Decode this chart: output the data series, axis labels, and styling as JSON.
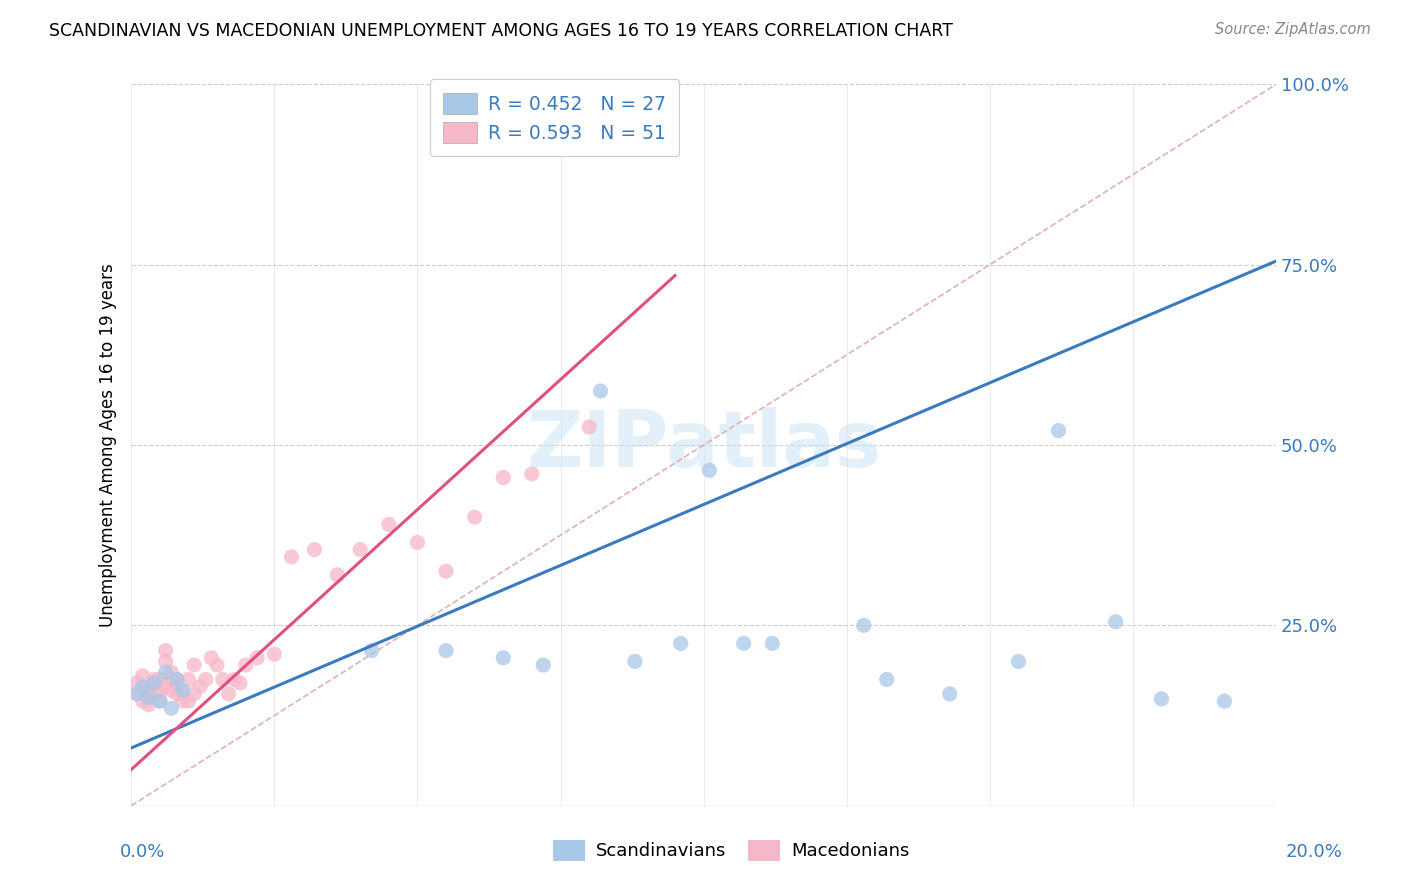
{
  "title": "SCANDINAVIAN VS MACEDONIAN UNEMPLOYMENT AMONG AGES 16 TO 19 YEARS CORRELATION CHART",
  "source": "Source: ZipAtlas.com",
  "ylabel": "Unemployment Among Ages 16 to 19 years",
  "color_scandinavian": "#a8c8e8",
  "color_macedonian": "#f5b8c8",
  "scatter_alpha": 0.75,
  "scatter_size": 120,
  "watermark_color": "#cce4f5",
  "blue_line_color": "#3a7abf",
  "pink_line_color": "#e05080",
  "legend_color1": "#a8c8e8",
  "legend_color2": "#f5b8c8",
  "legend_label1": "R = 0.452   N = 27",
  "legend_label2": "R = 0.593   N = 51",
  "xlim": [
    0.0,
    0.2
  ],
  "ylim": [
    0.0,
    1.0
  ],
  "blue_line_x": [
    0.0,
    0.2
  ],
  "blue_line_y": [
    0.08,
    0.755
  ],
  "pink_line_x": [
    0.0,
    0.095
  ],
  "pink_line_y": [
    0.05,
    0.735
  ],
  "diag_line_x": [
    0.0,
    0.2
  ],
  "diag_line_y": [
    0.0,
    1.0
  ],
  "scan_x": [
    0.001,
    0.002,
    0.003,
    0.004,
    0.005,
    0.006,
    0.007,
    0.008,
    0.009,
    0.042,
    0.055,
    0.065,
    0.072,
    0.082,
    0.088,
    0.096,
    0.101,
    0.107,
    0.112,
    0.128,
    0.132,
    0.143,
    0.155,
    0.162,
    0.172,
    0.18,
    0.191
  ],
  "scan_y": [
    0.155,
    0.165,
    0.15,
    0.17,
    0.145,
    0.185,
    0.135,
    0.175,
    0.16,
    0.215,
    0.215,
    0.205,
    0.195,
    0.575,
    0.2,
    0.225,
    0.465,
    0.225,
    0.225,
    0.25,
    0.175,
    0.155,
    0.2,
    0.52,
    0.255,
    0.148,
    0.145
  ],
  "mac_x": [
    0.001,
    0.001,
    0.002,
    0.002,
    0.002,
    0.003,
    0.003,
    0.003,
    0.004,
    0.004,
    0.004,
    0.005,
    0.005,
    0.005,
    0.006,
    0.006,
    0.006,
    0.007,
    0.007,
    0.007,
    0.008,
    0.008,
    0.008,
    0.009,
    0.009,
    0.01,
    0.01,
    0.011,
    0.011,
    0.012,
    0.013,
    0.014,
    0.015,
    0.016,
    0.017,
    0.018,
    0.019,
    0.02,
    0.022,
    0.025,
    0.028,
    0.032,
    0.036,
    0.04,
    0.045,
    0.05,
    0.055,
    0.06,
    0.065,
    0.07,
    0.08
  ],
  "mac_y": [
    0.155,
    0.17,
    0.145,
    0.165,
    0.18,
    0.14,
    0.16,
    0.15,
    0.17,
    0.155,
    0.175,
    0.16,
    0.145,
    0.175,
    0.165,
    0.2,
    0.215,
    0.16,
    0.175,
    0.185,
    0.155,
    0.165,
    0.175,
    0.145,
    0.155,
    0.145,
    0.175,
    0.195,
    0.155,
    0.165,
    0.175,
    0.205,
    0.195,
    0.175,
    0.155,
    0.175,
    0.17,
    0.195,
    0.205,
    0.21,
    0.345,
    0.355,
    0.32,
    0.355,
    0.39,
    0.365,
    0.325,
    0.4,
    0.455,
    0.46,
    0.525
  ]
}
